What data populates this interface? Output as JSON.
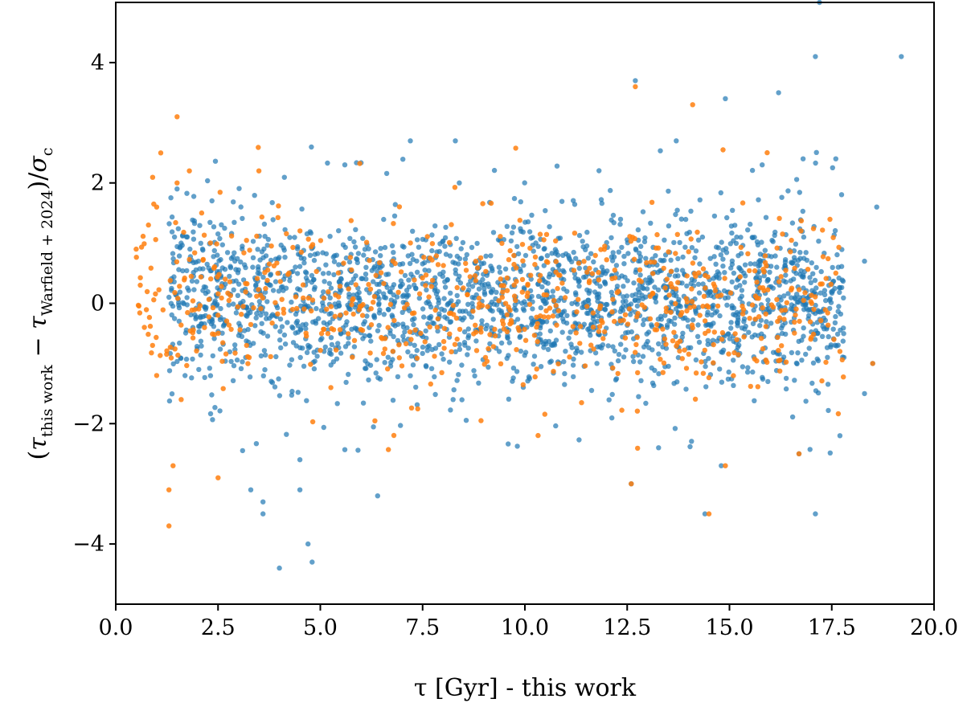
{
  "chart_data": {
    "type": "scatter",
    "xlabel": "τ [Gyr] - this work",
    "ylabel": {
      "open": "(",
      "tau1": "τ",
      "sub1": "this work",
      "minus": " − ",
      "tau2": "τ",
      "sub2": "Warfield + 2024",
      "close": ")/",
      "sigma": "σ",
      "sub3": "c"
    },
    "xlim": [
      0,
      20
    ],
    "ylim": [
      -5,
      5
    ],
    "xticks": [
      "0.0",
      "2.5",
      "5.0",
      "7.5",
      "10.0",
      "12.5",
      "15.0",
      "17.5",
      "20.0"
    ],
    "yticks": [
      "−4",
      "−2",
      "0",
      "2",
      "4"
    ],
    "grid": false,
    "legend": "none",
    "series": [
      {
        "color": "#1f77b4",
        "opacity": 0.7,
        "generated": {
          "count": 2200,
          "x_range": [
            1.3,
            17.8
          ],
          "center": 0.05,
          "spread": 0.65,
          "outlier_fraction": 0.06,
          "seed": 11
        },
        "points": [
          [
            3.3,
            -3.1
          ],
          [
            3.6,
            -3.3
          ],
          [
            3.6,
            -3.5
          ],
          [
            4.0,
            -4.4
          ],
          [
            4.5,
            -3.1
          ],
          [
            4.7,
            -4.0
          ],
          [
            4.8,
            -4.3
          ],
          [
            4.5,
            -2.6
          ],
          [
            6.4,
            -3.2
          ],
          [
            12.6,
            -3.0
          ],
          [
            14.4,
            -3.5
          ],
          [
            17.1,
            -3.5
          ],
          [
            14.8,
            -2.7
          ],
          [
            16.7,
            -2.5
          ],
          [
            12.7,
            3.7
          ],
          [
            14.9,
            3.4
          ],
          [
            16.2,
            3.5
          ],
          [
            17.1,
            4.1
          ],
          [
            17.2,
            5.0
          ],
          [
            19.2,
            4.1
          ],
          [
            18.6,
            1.6
          ],
          [
            18.3,
            0.7
          ],
          [
            17.6,
            2.4
          ],
          [
            18.5,
            -1.0
          ],
          [
            18.3,
            -1.5
          ],
          [
            17.8,
            -0.9
          ],
          [
            17.7,
            -2.2
          ],
          [
            5.6,
            2.3
          ],
          [
            8.3,
            2.7
          ],
          [
            7.2,
            2.7
          ],
          [
            1.5,
            1.9
          ],
          [
            13.7,
            2.7
          ],
          [
            16.8,
            2.4
          ],
          [
            15.8,
            2.3
          ]
        ]
      },
      {
        "color": "#ff7f0e",
        "opacity": 0.85,
        "generated": {
          "count": 700,
          "x_range": [
            0.5,
            17.8
          ],
          "center": 0.0,
          "spread": 0.65,
          "outlier_fraction": 0.05,
          "seed": 29
        },
        "points": [
          [
            1.3,
            -3.7
          ],
          [
            1.3,
            -3.1
          ],
          [
            1.4,
            -2.7
          ],
          [
            2.5,
            -2.9
          ],
          [
            0.5,
            0.9
          ],
          [
            0.6,
            0.3
          ],
          [
            0.7,
            -0.4
          ],
          [
            0.8,
            1.3
          ],
          [
            1.0,
            1.6
          ],
          [
            1.1,
            2.5
          ],
          [
            1.5,
            3.1
          ],
          [
            1.5,
            2.0
          ],
          [
            1.8,
            2.2
          ],
          [
            2.1,
            1.5
          ],
          [
            3.5,
            2.2
          ],
          [
            0.9,
            -0.7
          ],
          [
            1.0,
            -1.2
          ],
          [
            1.6,
            -1.6
          ],
          [
            12.7,
            3.6
          ],
          [
            14.1,
            3.3
          ],
          [
            12.6,
            -3.0
          ],
          [
            14.5,
            -3.5
          ],
          [
            14.9,
            -2.7
          ],
          [
            16.7,
            -2.5
          ],
          [
            17.6,
            0.5
          ],
          [
            18.5,
            -1.0
          ],
          [
            17.7,
            -0.8
          ]
        ]
      }
    ]
  }
}
